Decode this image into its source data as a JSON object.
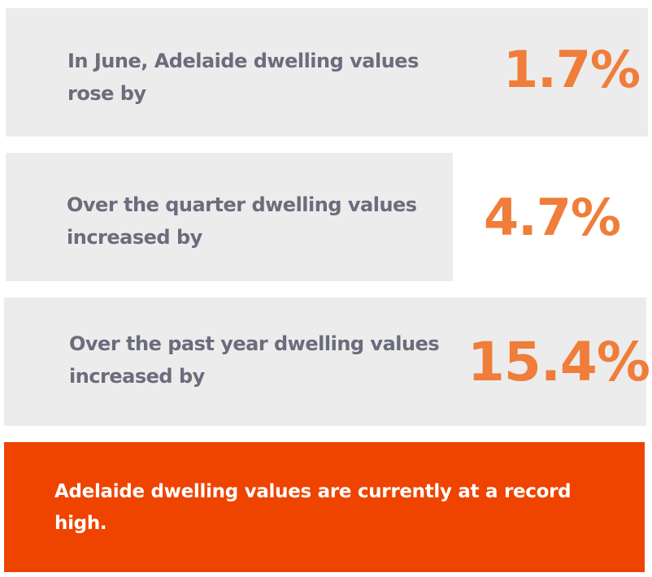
{
  "stats": [
    {
      "label_line1": "In June, Adelaide dwelling values",
      "label_line2": "rose by",
      "value": "1.7%"
    },
    {
      "label_line1": "Over the quarter dwelling values",
      "label_line2": "increased by",
      "value": "4.7%"
    },
    {
      "label_line1": "Over the past year dwelling values",
      "label_line2": "increased by",
      "value": "15.4%"
    }
  ],
  "callout": {
    "text": "Adelaide dwelling values are currently at a record high."
  },
  "colors": {
    "card_background": "#ececec",
    "label_text": "#6b6c7c",
    "value_text": "#f07d3a",
    "callout_background": "#ef4300",
    "callout_text": "#ffffff"
  }
}
